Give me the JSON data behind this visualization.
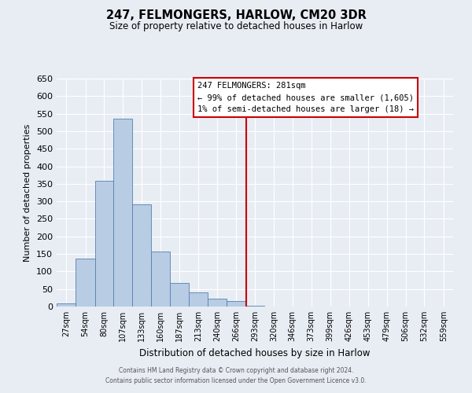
{
  "title": "247, FELMONGERS, HARLOW, CM20 3DR",
  "subtitle": "Size of property relative to detached houses in Harlow",
  "xlabel": "Distribution of detached houses by size in Harlow",
  "ylabel": "Number of detached properties",
  "bar_color": "#b8cce4",
  "bar_edge_color": "#5580b0",
  "bin_labels": [
    "27sqm",
    "54sqm",
    "80sqm",
    "107sqm",
    "133sqm",
    "160sqm",
    "187sqm",
    "213sqm",
    "240sqm",
    "266sqm",
    "293sqm",
    "320sqm",
    "346sqm",
    "373sqm",
    "399sqm",
    "426sqm",
    "453sqm",
    "479sqm",
    "506sqm",
    "532sqm",
    "559sqm"
  ],
  "bin_edges": [
    13.5,
    40.5,
    67.5,
    93.5,
    120.5,
    146.5,
    173.5,
    199.5,
    226.5,
    253.5,
    279.5,
    306.5,
    332.5,
    359.5,
    385.5,
    412.5,
    439.5,
    465.5,
    492.5,
    518.5,
    545.5,
    572.5
  ],
  "bar_heights": [
    10,
    136,
    358,
    535,
    291,
    157,
    67,
    40,
    22,
    15,
    2,
    0,
    0,
    0,
    1,
    0,
    0,
    0,
    0,
    0,
    1
  ],
  "vline_x": 281,
  "vline_color": "#cc0000",
  "ylim": [
    0,
    650
  ],
  "yticks": [
    0,
    50,
    100,
    150,
    200,
    250,
    300,
    350,
    400,
    450,
    500,
    550,
    600,
    650
  ],
  "annotation_title": "247 FELMONGERS: 281sqm",
  "annotation_line1": "← 99% of detached houses are smaller (1,605)",
  "annotation_line2": "1% of semi-detached houses are larger (18) →",
  "background_color": "#e8edf4",
  "axes_background": "#e8edf4",
  "grid_color": "#ffffff",
  "footer_line1": "Contains HM Land Registry data © Crown copyright and database right 2024.",
  "footer_line2": "Contains public sector information licensed under the Open Government Licence v3.0."
}
